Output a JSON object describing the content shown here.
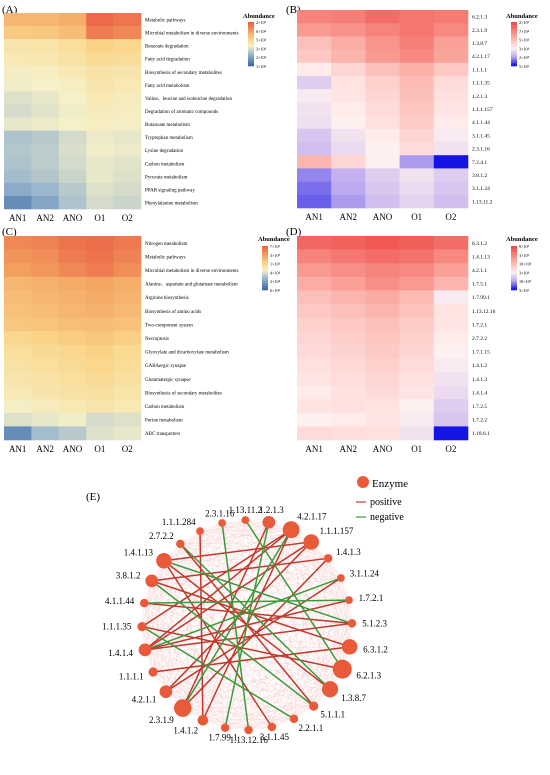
{
  "panels": {
    "A": {
      "label": "(A)",
      "legend_title": "Abundance",
      "legend_ticks": [
        "2×10⁵",
        "6×10⁴",
        "5×10⁴",
        "3×10⁴",
        "2×10⁴",
        "1×10⁴"
      ],
      "columns": [
        "AN1",
        "AN2",
        "ANO",
        "O1",
        "O2"
      ],
      "rows": [
        "Metabolic pathways",
        "Microbial metabolism in diverse environments",
        "Benzoate degradation",
        "Fatty acid degradation",
        "Biosynthesis of secondary metabolites",
        "Fatty acid metabolism",
        "Valine、leucine and isoleucine degradation",
        "Degradation of aromatic compounds",
        "Butanoate metabolism",
        "Tryptophan metabolism",
        "Lysine degradation",
        "Carbon metabolism",
        "Pyruvate metabolism",
        "PPAR signaling pathway",
        "Phenylalanine metabolism"
      ],
      "scale": [
        0.35,
        0.45,
        0.55,
        0.65,
        0.75,
        0.85,
        1.0
      ],
      "values": [
        [
          0.72,
          0.72,
          0.75,
          0.98,
          0.94
        ],
        [
          0.65,
          0.66,
          0.7,
          0.92,
          0.88
        ],
        [
          0.52,
          0.53,
          0.56,
          0.62,
          0.6
        ],
        [
          0.5,
          0.51,
          0.54,
          0.58,
          0.57
        ],
        [
          0.46,
          0.47,
          0.5,
          0.54,
          0.52
        ],
        [
          0.44,
          0.45,
          0.47,
          0.52,
          0.5
        ],
        [
          0.4,
          0.42,
          0.45,
          0.5,
          0.48
        ],
        [
          0.38,
          0.41,
          0.44,
          0.48,
          0.47
        ],
        [
          0.42,
          0.43,
          0.45,
          0.47,
          0.46
        ],
        [
          0.3,
          0.32,
          0.38,
          0.43,
          0.42
        ],
        [
          0.31,
          0.33,
          0.39,
          0.44,
          0.43
        ],
        [
          0.3,
          0.33,
          0.38,
          0.42,
          0.41
        ],
        [
          0.28,
          0.31,
          0.36,
          0.42,
          0.4
        ],
        [
          0.22,
          0.26,
          0.32,
          0.4,
          0.38
        ],
        [
          0.12,
          0.2,
          0.3,
          0.38,
          0.36
        ]
      ]
    },
    "B": {
      "label": "(B)",
      "legend_title": "Abundance",
      "legend_ticks": [
        "2×10⁵",
        "7×10⁴",
        "5×10⁴",
        "3×10⁴",
        "2×10⁴",
        "5×10³"
      ],
      "columns": [
        "AN1",
        "AN2",
        "ANO",
        "O1",
        "O2"
      ],
      "rows": [
        "6.2.1.3",
        "2.3.1.9",
        "1.3.8.7",
        "4.2.1.17",
        "1.1.1.1",
        "1.1.1.35",
        "1.2.1.3",
        "1.1.1.157",
        "4.1.1.44",
        "3.1.1.45",
        "2.3.1.16",
        "7.2.4.1",
        "3.8.1.2",
        "3.1.1.24",
        "1.13.11.2"
      ],
      "values": [
        [
          0.8,
          0.82,
          0.88,
          0.85,
          0.83
        ],
        [
          0.72,
          0.75,
          0.8,
          0.85,
          0.78
        ],
        [
          0.58,
          0.65,
          0.74,
          0.82,
          0.7
        ],
        [
          0.55,
          0.62,
          0.72,
          0.78,
          0.68
        ],
        [
          0.42,
          0.5,
          0.58,
          0.64,
          0.55
        ],
        [
          0.3,
          0.45,
          0.52,
          0.6,
          0.48
        ],
        [
          0.38,
          0.44,
          0.5,
          0.58,
          0.46
        ],
        [
          0.36,
          0.42,
          0.48,
          0.56,
          0.44
        ],
        [
          0.35,
          0.4,
          0.46,
          0.54,
          0.42
        ],
        [
          0.28,
          0.36,
          0.42,
          0.5,
          0.38
        ],
        [
          0.26,
          0.34,
          0.4,
          0.48,
          0.36
        ],
        [
          0.62,
          0.5,
          0.4,
          0.18,
          0.0
        ],
        [
          0.15,
          0.22,
          0.3,
          0.36,
          0.3
        ],
        [
          0.12,
          0.2,
          0.28,
          0.34,
          0.28
        ],
        [
          0.1,
          0.18,
          0.26,
          0.32,
          0.26
        ]
      ]
    },
    "C": {
      "label": "(C)",
      "legend_title": "Abundance",
      "legend_ticks": [
        "7×10⁵",
        "3×10⁵",
        "1×10⁵",
        "4×10⁴",
        "2×10⁴",
        "6×10³"
      ],
      "columns": [
        "AN1",
        "AN2",
        "ANO",
        "O1",
        "O2"
      ],
      "rows": [
        "Nitrogen metabolism",
        "Metabolic pathways",
        "Microbial metabolism in diverse environments",
        "Alanine、aspartate and glutamate metabolism",
        "Arginine biosynthesis",
        "Biosynthesis of amino acids",
        "Two-component system",
        "Necroptosis",
        "Glyoxylate and dicarboxylate metabolism",
        "GABAergic synapse",
        "Glutamatergic synapse",
        "Biosynthesis of secondary metabolites",
        "Carbon metabolism",
        "Purine metabolism",
        "ABC transporters"
      ],
      "scale": [
        0.35,
        0.45,
        0.55,
        0.65,
        0.75,
        0.85,
        1.0
      ],
      "values": [
        [
          0.88,
          0.9,
          0.95,
          0.97,
          0.93
        ],
        [
          0.84,
          0.86,
          0.92,
          0.95,
          0.9
        ],
        [
          0.8,
          0.83,
          0.88,
          0.92,
          0.86
        ],
        [
          0.72,
          0.74,
          0.76,
          0.78,
          0.75
        ],
        [
          0.7,
          0.72,
          0.74,
          0.76,
          0.73
        ],
        [
          0.68,
          0.7,
          0.72,
          0.74,
          0.71
        ],
        [
          0.66,
          0.67,
          0.69,
          0.7,
          0.68
        ],
        [
          0.6,
          0.62,
          0.64,
          0.66,
          0.63
        ],
        [
          0.56,
          0.58,
          0.6,
          0.62,
          0.59
        ],
        [
          0.54,
          0.56,
          0.58,
          0.6,
          0.57
        ],
        [
          0.52,
          0.54,
          0.56,
          0.58,
          0.55
        ],
        [
          0.5,
          0.52,
          0.54,
          0.55,
          0.53
        ],
        [
          0.46,
          0.48,
          0.5,
          0.52,
          0.5
        ],
        [
          0.4,
          0.42,
          0.44,
          0.38,
          0.4
        ],
        [
          0.12,
          0.28,
          0.32,
          0.4,
          0.42
        ]
      ]
    },
    "D": {
      "label": "(D)",
      "legend_title": "Abundance",
      "legend_ticks": [
        "9×10⁵",
        "3×10⁵",
        "10×10⁴",
        "3×10⁴",
        "10×10³",
        "3×10³"
      ],
      "columns": [
        "AN1",
        "AN2",
        "ANO",
        "O1",
        "O2"
      ],
      "rows": [
        "6.3.1.2",
        "1.4.1.13",
        "4.2.1.1",
        "1.7.5.1",
        "1.7.99.1",
        "1.13.12.16",
        "1.7.2.1",
        "2.7.2.2",
        "1.7.1.15",
        "1.4.1.2",
        "1.4.1.3",
        "1.4.1.4",
        "1.7.2.5",
        "1.7.2.2",
        "1.18.6.1"
      ],
      "values": [
        [
          0.9,
          0.92,
          0.95,
          0.93,
          0.88
        ],
        [
          0.8,
          0.84,
          0.88,
          0.86,
          0.78
        ],
        [
          0.72,
          0.76,
          0.8,
          0.78,
          0.7
        ],
        [
          0.65,
          0.7,
          0.76,
          0.72,
          0.62
        ],
        [
          0.58,
          0.62,
          0.66,
          0.6,
          0.38
        ],
        [
          0.55,
          0.58,
          0.62,
          0.57,
          0.45
        ],
        [
          0.52,
          0.55,
          0.58,
          0.54,
          0.44
        ],
        [
          0.5,
          0.53,
          0.56,
          0.52,
          0.42
        ],
        [
          0.48,
          0.51,
          0.54,
          0.5,
          0.4
        ],
        [
          0.46,
          0.49,
          0.52,
          0.48,
          0.38
        ],
        [
          0.44,
          0.47,
          0.5,
          0.46,
          0.36
        ],
        [
          0.42,
          0.45,
          0.48,
          0.44,
          0.34
        ],
        [
          0.45,
          0.46,
          0.45,
          0.4,
          0.3
        ],
        [
          0.4,
          0.42,
          0.44,
          0.38,
          0.28
        ],
        [
          0.48,
          0.47,
          0.46,
          0.36,
          0.0
        ]
      ]
    },
    "E": {
      "label": "(E)",
      "legend": {
        "node": "Enzyme",
        "positive": "positive",
        "negative": "negative"
      },
      "colors": {
        "node": "#e85a3a",
        "positive": "#c0392b",
        "negative": "#3a9a3a",
        "faint": "#f0a8a8"
      },
      "nodes": [
        {
          "name": "1.2.1.3",
          "size": 0.55
        },
        {
          "name": "4.2.1.17",
          "size": 0.85
        },
        {
          "name": "1.1.1.157",
          "size": 0.75
        },
        {
          "name": "1.4.1.3",
          "size": 0.25
        },
        {
          "name": "3.1.1.24",
          "size": 0.2
        },
        {
          "name": "1.7.2.1",
          "size": 0.2
        },
        {
          "name": "5.1.2.3",
          "size": 0.25
        },
        {
          "name": "6.3.1.2",
          "size": 0.75
        },
        {
          "name": "6.2.1.3",
          "size": 1.0
        },
        {
          "name": "1.3.8.7",
          "size": 0.8
        },
        {
          "name": "5.1.1.1",
          "size": 0.3
        },
        {
          "name": "2.2.1.1",
          "size": 0.25
        },
        {
          "name": "3.1.1.45",
          "size": 0.25
        },
        {
          "name": "1.13.12.16",
          "size": 0.25
        },
        {
          "name": "1.7.99.1",
          "size": 0.25
        },
        {
          "name": "1.4.1.2",
          "size": 0.4
        },
        {
          "name": "2.3.1.9",
          "size": 0.9
        },
        {
          "name": "4.2.1.1",
          "size": 0.55
        },
        {
          "name": "1.1.1.1",
          "size": 0.3
        },
        {
          "name": "1.4.1.4",
          "size": 0.55
        },
        {
          "name": "1.1.1.35",
          "size": 0.3
        },
        {
          "name": "4.1.1.44",
          "size": 0.25
        },
        {
          "name": "3.8.1.2",
          "size": 0.55
        },
        {
          "name": "1.4.1.13",
          "size": 0.75
        },
        {
          "name": "2.7.2.2",
          "size": 0.25
        },
        {
          "name": "1.1.1.284",
          "size": 0.2
        },
        {
          "name": "2.3.1.16",
          "size": 0.2
        },
        {
          "name": "1.13.11.2",
          "size": 0.2
        }
      ],
      "positive_edges": [
        [
          23,
          2
        ],
        [
          23,
          9
        ],
        [
          22,
          7
        ],
        [
          20,
          8
        ],
        [
          19,
          1
        ],
        [
          19,
          6
        ],
        [
          17,
          2
        ],
        [
          16,
          3
        ],
        [
          15,
          1
        ],
        [
          18,
          7
        ],
        [
          23,
          12
        ],
        [
          0,
          16
        ],
        [
          2,
          19
        ],
        [
          1,
          20
        ],
        [
          21,
          6
        ],
        [
          3,
          22
        ],
        [
          4,
          17
        ],
        [
          5,
          19
        ],
        [
          24,
          10
        ],
        [
          25,
          15
        ]
      ],
      "negative_edges": [
        [
          23,
          6
        ],
        [
          22,
          10
        ],
        [
          24,
          9
        ],
        [
          0,
          14
        ],
        [
          1,
          16
        ],
        [
          21,
          5
        ],
        [
          19,
          4
        ],
        [
          20,
          11
        ],
        [
          26,
          13
        ],
        [
          27,
          8
        ]
      ]
    }
  }
}
